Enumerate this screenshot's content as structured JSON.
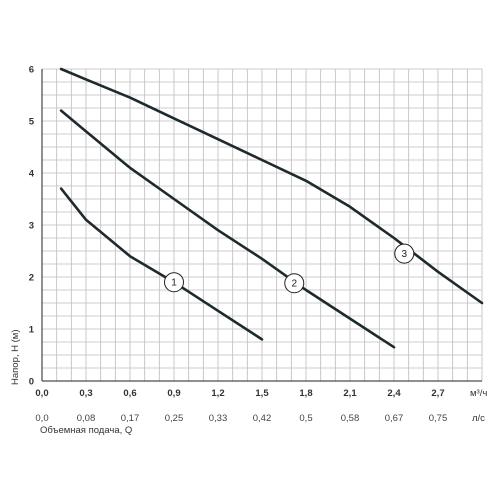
{
  "chart_data": {
    "type": "line",
    "ylabel": "Напор, H (м)",
    "xlabel": "Объемная подача, Q",
    "x_unit": "м³/ч",
    "x2_unit": "л/с",
    "xlim": [
      0,
      3.0
    ],
    "ylim": [
      0,
      6
    ],
    "grid": true,
    "x_ticks": [
      "0,0",
      "0,3",
      "0,6",
      "0,9",
      "1,2",
      "1,5",
      "1,8",
      "2,1",
      "2,4",
      "2,7"
    ],
    "x_tick_values": [
      0,
      0.3,
      0.6,
      0.9,
      1.2,
      1.5,
      1.8,
      2.1,
      2.4,
      2.7
    ],
    "x2_ticks": [
      "0,0",
      "0,08",
      "0,17",
      "0,25",
      "0,33",
      "0,42",
      "0,5",
      "0,58",
      "0,67",
      "0,75"
    ],
    "y_ticks": [
      "0",
      "1",
      "2",
      "3",
      "4",
      "5",
      "6"
    ],
    "y_tick_values": [
      0,
      1,
      2,
      3,
      4,
      5,
      6
    ],
    "series": [
      {
        "name": "1",
        "x": [
          0.13,
          0.3,
          0.6,
          0.9,
          1.2,
          1.5
        ],
        "y": [
          3.7,
          3.1,
          2.4,
          1.9,
          1.35,
          0.8
        ],
        "marker_at": [
          0.9,
          1.9
        ]
      },
      {
        "name": "2",
        "x": [
          0.13,
          0.3,
          0.6,
          0.9,
          1.2,
          1.5,
          1.8,
          2.1,
          2.4
        ],
        "y": [
          5.2,
          4.8,
          4.1,
          3.5,
          2.9,
          2.35,
          1.75,
          1.2,
          0.65
        ],
        "marker_at": [
          1.72,
          1.88
        ]
      },
      {
        "name": "3",
        "x": [
          0.13,
          0.3,
          0.6,
          0.9,
          1.2,
          1.5,
          1.8,
          2.1,
          2.4,
          2.7,
          3.0
        ],
        "y": [
          6.0,
          5.8,
          5.45,
          5.05,
          4.65,
          4.25,
          3.85,
          3.35,
          2.75,
          2.1,
          1.5
        ],
        "marker_at": [
          2.47,
          2.45
        ]
      }
    ]
  }
}
